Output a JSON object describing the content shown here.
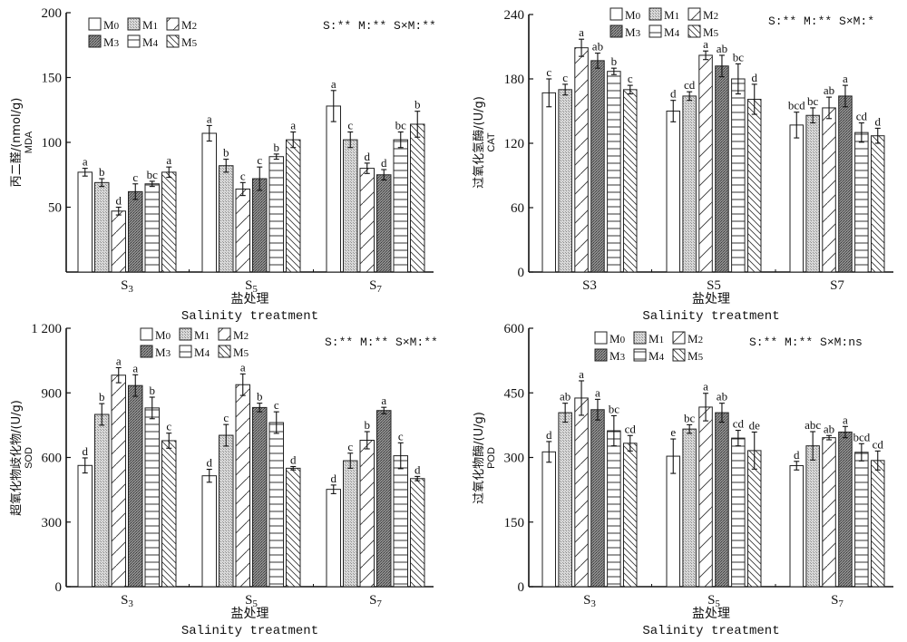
{
  "figure": {
    "legend_labels": [
      "M0",
      "M1",
      "M2",
      "M3",
      "M4",
      "M5"
    ]
  },
  "chart_data": [
    {
      "type": "bar",
      "id": "mda",
      "title": "",
      "ylabel": "丙二醛/(nmol/g)",
      "ylabel_sub": "MDA",
      "xlabel_cn": "盐处理",
      "xlabel_en": "Salinity treatment",
      "ylim": [
        0,
        200
      ],
      "yticks": [
        50,
        100,
        150,
        200
      ],
      "ytick_labels": [
        "50",
        "100",
        "150",
        "200"
      ],
      "show_zero_tick": false,
      "categories": [
        "S3",
        "S5",
        "S7"
      ],
      "category_style": "subscript",
      "significance": "S:** M:** S×M:**",
      "legend_position": "top-left",
      "series": [
        {
          "name": "M0",
          "values": [
            77,
            107,
            128
          ],
          "errors": [
            3,
            6,
            12
          ],
          "letters": [
            "a",
            "a",
            "a"
          ]
        },
        {
          "name": "M1",
          "values": [
            69,
            82,
            102
          ],
          "errors": [
            3,
            5,
            6
          ],
          "letters": [
            "b",
            "b",
            "c"
          ]
        },
        {
          "name": "M2",
          "values": [
            47,
            64,
            80
          ],
          "errors": [
            3,
            5,
            4
          ],
          "letters": [
            "d",
            "c",
            "d"
          ]
        },
        {
          "name": "M3",
          "values": [
            62,
            72,
            75
          ],
          "errors": [
            6,
            9,
            4
          ],
          "letters": [
            "c",
            "c",
            "d"
          ]
        },
        {
          "name": "M4",
          "values": [
            68,
            89,
            102
          ],
          "errors": [
            2,
            2,
            6
          ],
          "letters": [
            "bc",
            "b",
            "bc"
          ]
        },
        {
          "name": "M5",
          "values": [
            77,
            102,
            114
          ],
          "errors": [
            4,
            6,
            10
          ],
          "letters": [
            "a",
            "a",
            "b"
          ]
        }
      ]
    },
    {
      "type": "bar",
      "id": "cat",
      "title": "",
      "ylabel": "过氧化氢酶/(U/g)",
      "ylabel_sub": "CAT",
      "xlabel_cn": "盐处理",
      "xlabel_en": "Salinity treatment",
      "ylim": [
        0,
        240
      ],
      "yticks": [
        0,
        60,
        120,
        180,
        240
      ],
      "ytick_labels": [
        "0",
        "60",
        "120",
        "180",
        "240"
      ],
      "show_zero_tick": true,
      "categories": [
        "S3",
        "S5",
        "S7"
      ],
      "category_style": "plain",
      "significance": "S:** M:** S×M:*",
      "legend_position": "top-center",
      "series": [
        {
          "name": "M0",
          "values": [
            167,
            150,
            137
          ],
          "errors": [
            13,
            10,
            12
          ],
          "letters": [
            "c",
            "d",
            "bcd"
          ]
        },
        {
          "name": "M1",
          "values": [
            170,
            164,
            146
          ],
          "errors": [
            5,
            4,
            7
          ],
          "letters": [
            "c",
            "cd",
            "bc"
          ]
        },
        {
          "name": "M2",
          "values": [
            209,
            202,
            153
          ],
          "errors": [
            8,
            4,
            10
          ],
          "letters": [
            "a",
            "a",
            "ab"
          ]
        },
        {
          "name": "M3",
          "values": [
            197,
            192,
            164
          ],
          "errors": [
            7,
            10,
            10
          ],
          "letters": [
            "ab",
            "ab",
            "a"
          ]
        },
        {
          "name": "M4",
          "values": [
            187,
            180,
            130
          ],
          "errors": [
            3,
            14,
            9
          ],
          "letters": [
            "b",
            "bc",
            "cd"
          ]
        },
        {
          "name": "M5",
          "values": [
            170,
            161,
            127
          ],
          "errors": [
            4,
            14,
            7
          ],
          "letters": [
            "c",
            "d",
            "d"
          ]
        }
      ]
    },
    {
      "type": "bar",
      "id": "sod",
      "title": "",
      "ylabel": "超氧化物歧化物/(U/g)",
      "ylabel_sub": "SOD",
      "xlabel_cn": "盐处理",
      "xlabel_en": "Salinity treatment",
      "ylim": [
        0,
        1200
      ],
      "yticks": [
        0,
        300,
        600,
        900,
        1200
      ],
      "ytick_labels": [
        "0",
        "300",
        "600",
        "900",
        "1 200"
      ],
      "show_zero_tick": true,
      "categories": [
        "S3",
        "S5",
        "S7"
      ],
      "category_style": "subscript",
      "significance": "S:** M:** S×M:**",
      "legend_position": "top-center",
      "series": [
        {
          "name": "M0",
          "values": [
            563,
            515,
            452
          ],
          "errors": [
            35,
            30,
            20
          ],
          "letters": [
            "d",
            "d",
            "d"
          ]
        },
        {
          "name": "M1",
          "values": [
            800,
            703,
            585
          ],
          "errors": [
            50,
            50,
            35
          ],
          "letters": [
            "b",
            "c",
            "c"
          ]
        },
        {
          "name": "M2",
          "values": [
            982,
            938,
            680
          ],
          "errors": [
            35,
            50,
            40
          ],
          "letters": [
            "a",
            "a",
            "b"
          ]
        },
        {
          "name": "M3",
          "values": [
            934,
            832,
            818
          ],
          "errors": [
            50,
            20,
            15
          ],
          "letters": [
            "a",
            "b",
            "a"
          ]
        },
        {
          "name": "M4",
          "values": [
            830,
            762,
            608
          ],
          "errors": [
            50,
            50,
            60
          ],
          "letters": [
            "b",
            "c",
            "c"
          ]
        },
        {
          "name": "M5",
          "values": [
            678,
            550,
            502
          ],
          "errors": [
            35,
            8,
            10
          ],
          "letters": [
            "c",
            "d",
            "d"
          ]
        }
      ]
    },
    {
      "type": "bar",
      "id": "pod",
      "title": "",
      "ylabel": "过氧化物酶/(U/g)",
      "ylabel_sub": "POD",
      "xlabel_cn": "盐处理",
      "xlabel_en": "Salinity treatment",
      "ylim": [
        0,
        600
      ],
      "yticks": [
        0,
        150,
        300,
        450,
        600
      ],
      "ytick_labels": [
        "0",
        "150",
        "300",
        "450",
        "600"
      ],
      "show_zero_tick": true,
      "categories": [
        "S3",
        "S5",
        "S7"
      ],
      "category_style": "subscript",
      "significance": "S:** M:** S×M:ns",
      "legend_position": "top-center",
      "series": [
        {
          "name": "M0",
          "values": [
            313,
            303,
            281
          ],
          "errors": [
            24,
            40,
            10
          ],
          "letters": [
            "d",
            "e",
            "d"
          ]
        },
        {
          "name": "M1",
          "values": [
            404,
            366,
            327
          ],
          "errors": [
            22,
            10,
            33
          ],
          "letters": [
            "ab",
            "bc",
            "abc"
          ]
        },
        {
          "name": "M2",
          "values": [
            438,
            417,
            346
          ],
          "errors": [
            40,
            32,
            5
          ],
          "letters": [
            "a",
            "a",
            "ab"
          ]
        },
        {
          "name": "M3",
          "values": [
            411,
            404,
            359
          ],
          "errors": [
            24,
            22,
            13
          ],
          "letters": [
            "a",
            "ab",
            "a"
          ]
        },
        {
          "name": "M4",
          "values": [
            362,
            345,
            312
          ],
          "errors": [
            35,
            18,
            20
          ],
          "letters": [
            "bc",
            "cd",
            "bcd"
          ]
        },
        {
          "name": "M5",
          "values": [
            333,
            316,
            293
          ],
          "errors": [
            18,
            43,
            22
          ],
          "letters": [
            "cd",
            "de",
            "cd"
          ]
        }
      ]
    }
  ]
}
